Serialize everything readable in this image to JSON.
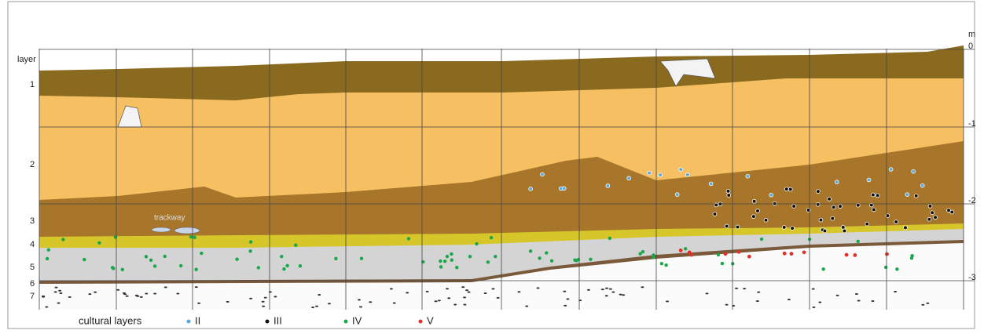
{
  "section": {
    "axis_title": "layer",
    "layers": [
      "1",
      "2",
      "3",
      "4",
      "5",
      "6",
      "7"
    ],
    "depth_unit": "m",
    "depth_labels": [
      "0",
      "-1",
      "-2",
      "-3"
    ],
    "annotation": "trackway",
    "legend": {
      "title": "cultural layers",
      "items": [
        "II",
        "III",
        "IV",
        "V"
      ]
    }
  }
}
